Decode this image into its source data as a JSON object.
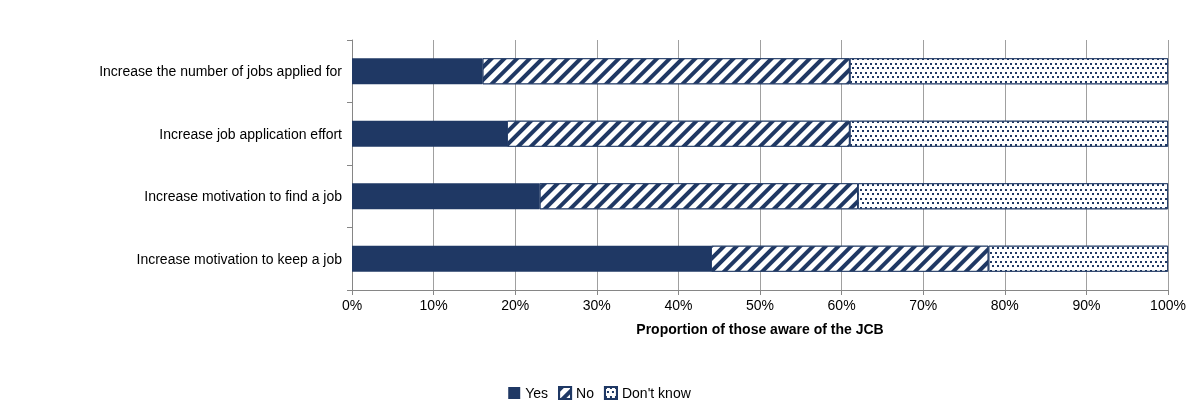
{
  "chart_data": {
    "type": "bar",
    "orientation": "horizontal",
    "stacked": true,
    "xlabel": "Proportion of those aware of the JCB",
    "categories": [
      "Increase the number of jobs applied for",
      "Increase job application effort",
      "Increase motivation to find a job",
      "Increase motivation to keep a job"
    ],
    "series": [
      {
        "name": "Yes",
        "color": "#1f3864",
        "values": [
          16,
          19,
          23,
          44
        ]
      },
      {
        "name": "No",
        "color": "#1f3864",
        "values": [
          45,
          42,
          39,
          34
        ]
      },
      {
        "name": "Don't know",
        "color": "#1f3864",
        "values": [
          39,
          39,
          38,
          22
        ]
      }
    ],
    "xlim": [
      0,
      100
    ],
    "xticks": [
      {
        "value": 0,
        "label": "0%"
      },
      {
        "value": 10,
        "label": "10%"
      },
      {
        "value": 20,
        "label": "20%"
      },
      {
        "value": 30,
        "label": "30%"
      },
      {
        "value": 40,
        "label": "40%"
      },
      {
        "value": 50,
        "label": "50%"
      },
      {
        "value": 60,
        "label": "60%"
      },
      {
        "value": 70,
        "label": "70%"
      },
      {
        "value": 80,
        "label": "80%"
      },
      {
        "value": 90,
        "label": "90%"
      },
      {
        "value": 100,
        "label": "100%"
      }
    ],
    "grid": "x",
    "legend": "bottom"
  }
}
